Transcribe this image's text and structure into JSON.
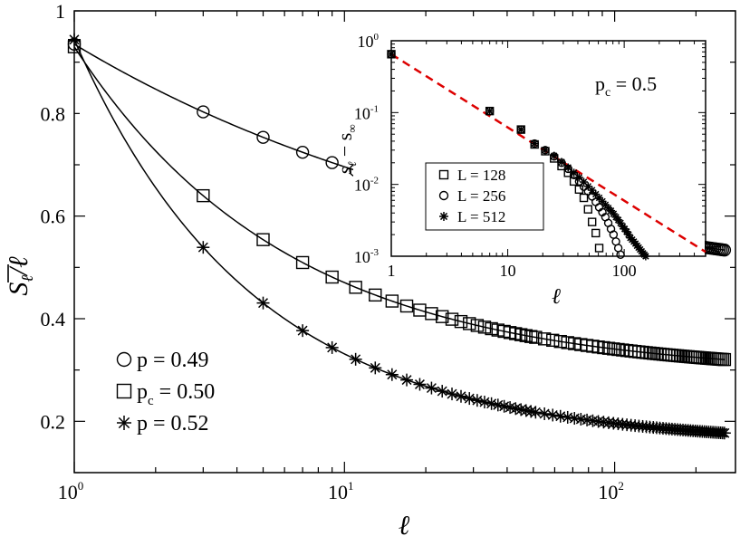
{
  "chart_data": [
    {
      "type": "line",
      "xscale": "log",
      "xlim": [
        1,
        280
      ],
      "ylim": [
        0.1,
        1.0
      ],
      "xlabel": "ℓ",
      "ylabel": "S̄ℓ/ℓ",
      "xticks": [
        {
          "base": "10",
          "exp": "0",
          "value": 1
        },
        {
          "base": "10",
          "exp": "1",
          "value": 10
        },
        {
          "base": "10",
          "exp": "2",
          "value": 100
        }
      ],
      "yticks": [
        {
          "label": "0.2",
          "value": 0.2
        },
        {
          "label": "0.4",
          "value": 0.4
        },
        {
          "label": "0.6",
          "value": 0.6
        },
        {
          "label": "0.8",
          "value": 0.8
        },
        {
          "label": "1",
          "value": 1.0
        }
      ],
      "legend_position": "bottom-left",
      "series": [
        {
          "name": "p  = 0.49",
          "name_main": "p",
          "name_sub": "",
          "name_rest": "  = 0.49",
          "marker": "circle",
          "a": 0.363,
          "b": 0.572,
          "c": 0.0115,
          "k": 0.25,
          "x": [
            1,
            3,
            5,
            7,
            9,
            11,
            13,
            15,
            17,
            19,
            21,
            23,
            25,
            27,
            29,
            31,
            33,
            35,
            37,
            39,
            41,
            43,
            45,
            47,
            49,
            51,
            55,
            59,
            63,
            67,
            71,
            75,
            79,
            83,
            87,
            91,
            95,
            99,
            103,
            107,
            111,
            115,
            119,
            123,
            127,
            131,
            135,
            139,
            143,
            147,
            151,
            155,
            159,
            163,
            167,
            171,
            175,
            179,
            183,
            187,
            191,
            195,
            199,
            203,
            207,
            211,
            215,
            219,
            223,
            227,
            231,
            235,
            239,
            243,
            247,
            251,
            255
          ]
        },
        {
          "name": "pc = 0.50",
          "name_main": "p",
          "name_sub": "c",
          "name_rest": " = 0.50",
          "marker": "square",
          "a": 0.29,
          "b": 0.64,
          "c": 0.0,
          "k": 0.55,
          "x": [
            1,
            3,
            5,
            7,
            9,
            11,
            13,
            15,
            17,
            19,
            21,
            23,
            25,
            27,
            29,
            31,
            33,
            35,
            37,
            39,
            41,
            43,
            45,
            47,
            49,
            51,
            55,
            59,
            63,
            67,
            71,
            75,
            79,
            83,
            87,
            91,
            95,
            99,
            103,
            107,
            111,
            115,
            119,
            123,
            127,
            131,
            135,
            139,
            143,
            147,
            151,
            155,
            159,
            163,
            167,
            171,
            175,
            179,
            183,
            187,
            191,
            195,
            199,
            203,
            207,
            211,
            215,
            219,
            223,
            227,
            231,
            235,
            239,
            243,
            247,
            251,
            255
          ]
        },
        {
          "name": "p  = 0.52",
          "name_main": "p",
          "name_sub": "",
          "name_rest": "  = 0.52",
          "marker": "star",
          "a": 0.172,
          "b": 0.772,
          "c": -0.0057,
          "k": 0.67,
          "x": [
            1,
            3,
            5,
            7,
            9,
            11,
            13,
            15,
            17,
            19,
            21,
            23,
            25,
            27,
            29,
            31,
            33,
            35,
            37,
            39,
            41,
            43,
            45,
            47,
            49,
            51,
            55,
            59,
            63,
            67,
            71,
            75,
            79,
            83,
            87,
            91,
            95,
            99,
            103,
            107,
            111,
            115,
            119,
            123,
            127,
            131,
            135,
            139,
            143,
            147,
            151,
            155,
            159,
            163,
            167,
            171,
            175,
            179,
            183,
            187,
            191,
            195,
            199,
            203,
            207,
            211,
            215,
            219,
            223,
            227,
            231,
            235,
            239,
            243,
            247,
            251,
            255
          ]
        }
      ]
    },
    {
      "type": "scatter",
      "xscale": "log",
      "yscale": "log",
      "xlim": [
        1,
        500
      ],
      "ylim": [
        0.001,
        1.0
      ],
      "xlabel": "ℓ",
      "ylabel": "s̄ℓ − s̄∞",
      "xticks": [
        {
          "label": "1",
          "value": 1
        },
        {
          "label": "10",
          "value": 10
        },
        {
          "label": "100",
          "value": 100
        }
      ],
      "yticks": [
        {
          "base": "10",
          "exp": "-3",
          "value": 0.001
        },
        {
          "base": "10",
          "exp": "-2",
          "value": 0.01
        },
        {
          "base": "10",
          "exp": "-1",
          "value": 0.1
        },
        {
          "base": "10",
          "exp": "0",
          "value": 1
        }
      ],
      "annotation": {
        "main": "p",
        "sub": "c",
        "rest": " = 0.5"
      },
      "legend_position": "bottom-left",
      "reference_line": {
        "color": "#dd0000",
        "style": "dashed",
        "x": [
          1,
          500
        ],
        "y": [
          0.65,
          0.00115
        ]
      },
      "series": [
        {
          "name": "L = 128",
          "marker": "square",
          "points": [
            [
              1,
              0.65
            ],
            [
              7,
              0.105
            ],
            [
              13,
              0.058
            ],
            [
              17,
              0.036
            ],
            [
              21,
              0.029
            ],
            [
              25,
              0.023
            ],
            [
              29,
              0.018
            ],
            [
              33,
              0.0145
            ],
            [
              37,
              0.011
            ],
            [
              41,
              0.0085
            ],
            [
              45,
              0.0065
            ],
            [
              49,
              0.0045
            ],
            [
              53,
              0.003
            ],
            [
              57,
              0.0021
            ],
            [
              61,
              0.0013
            ]
          ]
        },
        {
          "name": "L = 256",
          "marker": "circle",
          "points": [
            [
              1,
              0.65
            ],
            [
              7,
              0.105
            ],
            [
              13,
              0.058
            ],
            [
              17,
              0.037
            ],
            [
              21,
              0.03
            ],
            [
              25,
              0.0245
            ],
            [
              29,
              0.02
            ],
            [
              33,
              0.0165
            ],
            [
              37,
              0.0135
            ],
            [
              41,
              0.011
            ],
            [
              45,
              0.0093
            ],
            [
              49,
              0.008
            ],
            [
              53,
              0.0068
            ],
            [
              57,
              0.0057
            ],
            [
              61,
              0.0048
            ],
            [
              65,
              0.0041
            ],
            [
              69,
              0.0035
            ],
            [
              73,
              0.0029
            ],
            [
              77,
              0.0024
            ],
            [
              81,
              0.002
            ],
            [
              85,
              0.0016
            ],
            [
              89,
              0.0013
            ],
            [
              93,
              0.00105
            ]
          ]
        },
        {
          "name": "L = 512",
          "marker": "star",
          "points": [
            [
              1,
              0.65
            ],
            [
              7,
              0.105
            ],
            [
              13,
              0.058
            ],
            [
              17,
              0.037
            ],
            [
              21,
              0.03
            ],
            [
              25,
              0.025
            ],
            [
              29,
              0.0205
            ],
            [
              33,
              0.0172
            ],
            [
              37,
              0.0145
            ],
            [
              41,
              0.0125
            ],
            [
              45,
              0.0108
            ],
            [
              49,
              0.0094
            ],
            [
              53,
              0.0083
            ],
            [
              57,
              0.0073
            ],
            [
              61,
              0.0065
            ],
            [
              65,
              0.0058
            ],
            [
              69,
              0.0052
            ],
            [
              73,
              0.0047
            ],
            [
              77,
              0.0043
            ],
            [
              81,
              0.0039
            ],
            [
              85,
              0.0035
            ],
            [
              89,
              0.0032
            ],
            [
              93,
              0.0029
            ],
            [
              97,
              0.0026
            ],
            [
              101,
              0.0024
            ],
            [
              105,
              0.0022
            ],
            [
              109,
              0.002
            ],
            [
              113,
              0.0018
            ],
            [
              117,
              0.0017
            ],
            [
              121,
              0.0016
            ],
            [
              125,
              0.0015
            ],
            [
              129,
              0.0014
            ],
            [
              133,
              0.00132
            ],
            [
              137,
              0.00124
            ],
            [
              141,
              0.00117
            ],
            [
              145,
              0.0011
            ],
            [
              149,
              0.00105
            ],
            [
              153,
              0.001
            ]
          ]
        }
      ]
    }
  ]
}
